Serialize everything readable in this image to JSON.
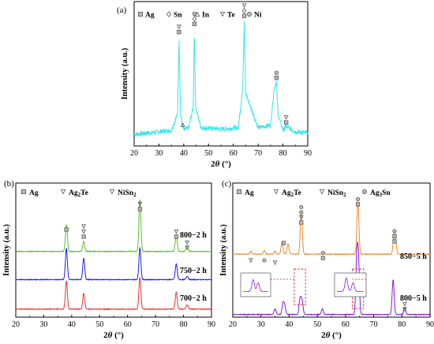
{
  "figure": {
    "panels": [
      {
        "id": "a",
        "label": "(a)",
        "legend": [
          {
            "marker": "square",
            "text": "Ag"
          },
          {
            "marker": "diamond",
            "text": "Sn"
          },
          {
            "marker": "triangle-up",
            "text": "In"
          },
          {
            "marker": "triangle-down",
            "text": "Te"
          },
          {
            "marker": "circle",
            "text": "Ni"
          }
        ],
        "ylabel": "Intensity (a.u.)",
        "xlabel_main": "2",
        "xlabel_theta": "θ",
        "xlabel_unit": " (°)",
        "xticks": [
          "20",
          "30",
          "40",
          "50",
          "60",
          "70",
          "80",
          "90"
        ],
        "color": "#34e8e8"
      },
      {
        "id": "b",
        "label": "(b)",
        "legend": [
          {
            "marker": "square",
            "text": "Ag"
          },
          {
            "marker": "triangle-down",
            "text": "Ag",
            "sub": "2",
            "rest": "Te"
          },
          {
            "marker": "triangle-down",
            "text": "NiSn",
            "sub": "2",
            "rest": ""
          }
        ],
        "ylabel": "Intensity (a.u.)",
        "xlabel_main": "2",
        "xlabel_theta": "θ",
        "xlabel_unit": " (°)",
        "xticks": [
          "20",
          "30",
          "40",
          "50",
          "60",
          "70",
          "80",
          "90"
        ],
        "series_labels": [
          "800−2 h",
          "750−2 h",
          "700−2 h"
        ],
        "colors": [
          "#5dbb2f",
          "#1f1fe6",
          "#e63232"
        ]
      },
      {
        "id": "c",
        "label": "(c)",
        "legend": [
          {
            "marker": "square",
            "text": "Ag"
          },
          {
            "marker": "triangle-down",
            "text": "Ag",
            "sub": "2",
            "rest": "Te"
          },
          {
            "marker": "triangle-down",
            "text": "NiSn",
            "sub": "2",
            "rest": ""
          },
          {
            "marker": "circle",
            "text": "Ag",
            "sub": "3",
            "rest": "Sn"
          }
        ],
        "ylabel": "Intensity (a.u.)",
        "xlabel_main": "2",
        "xlabel_theta": "θ",
        "xlabel_unit": " (°)",
        "xticks": [
          "20",
          "30",
          "40",
          "50",
          "60",
          "70",
          "80",
          "90"
        ],
        "series_labels": [
          "850−5 h",
          "800−5 h"
        ],
        "colors": [
          "#f08a2a",
          "#8a1ad6"
        ]
      }
    ]
  },
  "chart_data": [
    {
      "type": "line",
      "panel": "a",
      "xlim": [
        20,
        90
      ],
      "series": [
        {
          "x": [
            20,
            25,
            30,
            35,
            37.5,
            38.1,
            38.7,
            40,
            42,
            43.8,
            44.3,
            44.8,
            47,
            55,
            62,
            63.8,
            64.4,
            65,
            70,
            75,
            76.5,
            77.4,
            78,
            80,
            81.3,
            85,
            90
          ],
          "y": [
            0.05,
            0.06,
            0.07,
            0.08,
            0.2,
            0.78,
            0.2,
            0.08,
            0.1,
            0.25,
            0.84,
            0.25,
            0.1,
            0.09,
            0.1,
            0.4,
            0.9,
            0.35,
            0.1,
            0.12,
            0.4,
            0.44,
            0.2,
            0.08,
            0.11,
            0.07,
            0.06
          ]
        }
      ],
      "peak_markers": [
        {
          "x": 38.1,
          "symbols": [
            "triangle-down",
            "square"
          ]
        },
        {
          "x": 39.6,
          "symbols": [
            "triangle-up"
          ]
        },
        {
          "x": 44.3,
          "symbols": [
            "circle",
            "diamond",
            "square"
          ]
        },
        {
          "x": 64.4,
          "symbols": [
            "triangle-down",
            "diamond",
            "square"
          ]
        },
        {
          "x": 77.4,
          "symbols": [
            "circle",
            "square"
          ]
        },
        {
          "x": 81.3,
          "symbols": [
            "triangle-down",
            "square"
          ]
        }
      ]
    },
    {
      "type": "line",
      "panel": "b",
      "xlim": [
        20,
        90
      ],
      "series": [
        {
          "name": "800−2 h",
          "peaks": [
            [
              38.1,
              0.48
            ],
            [
              44.3,
              0.18
            ],
            [
              64.4,
              0.92
            ],
            [
              77.4,
              0.28
            ],
            [
              81.3,
              0.1
            ]
          ]
        },
        {
          "name": "750−2 h",
          "peaks": [
            [
              38.1,
              0.56
            ],
            [
              44.3,
              0.38
            ],
            [
              64.4,
              0.56
            ],
            [
              77.4,
              0.28
            ],
            [
              81.3,
              0.06
            ]
          ]
        },
        {
          "name": "700−2 h",
          "peaks": [
            [
              38.1,
              0.5
            ],
            [
              44.3,
              0.28
            ],
            [
              64.4,
              0.56
            ],
            [
              77.4,
              0.3
            ],
            [
              81.3,
              0.08
            ]
          ]
        }
      ],
      "peak_markers": [
        {
          "x": 38.1,
          "symbols": [
            "square"
          ]
        },
        {
          "x": 44.3,
          "symbols": [
            "triangle-down",
            "triangle-down",
            "square"
          ]
        },
        {
          "x": 64.4,
          "symbols": [
            "triangle-down",
            "square"
          ]
        },
        {
          "x": 77.4,
          "symbols": [
            "triangle-down",
            "square"
          ]
        },
        {
          "x": 81.3,
          "symbols": [
            "triangle-down",
            "triangle-down"
          ]
        }
      ]
    },
    {
      "type": "line",
      "panel": "c",
      "xlim": [
        20,
        90
      ],
      "series": [
        {
          "name": "850−5 h",
          "peaks": [
            [
              26.4,
              0.05
            ],
            [
              31.2,
              0.06
            ],
            [
              35.0,
              0.05
            ],
            [
              37.5,
              0.22
            ],
            [
              39.6,
              0.18
            ],
            [
              44.3,
              0.78
            ],
            [
              52.0,
              0.05
            ],
            [
              64.4,
              0.95
            ],
            [
              77.2,
              0.28
            ],
            [
              77.7,
              0.25
            ]
          ]
        },
        {
          "name": "800−5 h",
          "peaks": [
            [
              35.0,
              0.1
            ],
            [
              37.8,
              0.18
            ],
            [
              38.4,
              0.15
            ],
            [
              43.9,
              0.28
            ],
            [
              44.6,
              0.24
            ],
            [
              51.8,
              0.1
            ],
            [
              64.0,
              0.95
            ],
            [
              64.6,
              0.9
            ],
            [
              76.9,
              0.62
            ],
            [
              81.0,
              0.12
            ]
          ]
        }
      ],
      "peak_markers": [
        {
          "x": 26.4,
          "symbols": [
            "triangle-down"
          ]
        },
        {
          "x": 31.2,
          "symbols": [
            "circle"
          ]
        },
        {
          "x": 35.0,
          "symbols": [
            "triangle-down"
          ]
        },
        {
          "x": 38.1,
          "symbols": [
            "square"
          ]
        },
        {
          "x": 44.3,
          "symbols": [
            "circle",
            "circle",
            "triangle-down",
            "square"
          ]
        },
        {
          "x": 52.0,
          "symbols": [
            "circle",
            "square"
          ]
        },
        {
          "x": 64.4,
          "symbols": [
            "circle",
            "square"
          ]
        },
        {
          "x": 77.4,
          "symbols": [
            "circle",
            "square",
            "square"
          ]
        },
        {
          "x": 81.0,
          "symbols": [
            "triangle-down",
            "triangle-down"
          ]
        }
      ]
    }
  ]
}
